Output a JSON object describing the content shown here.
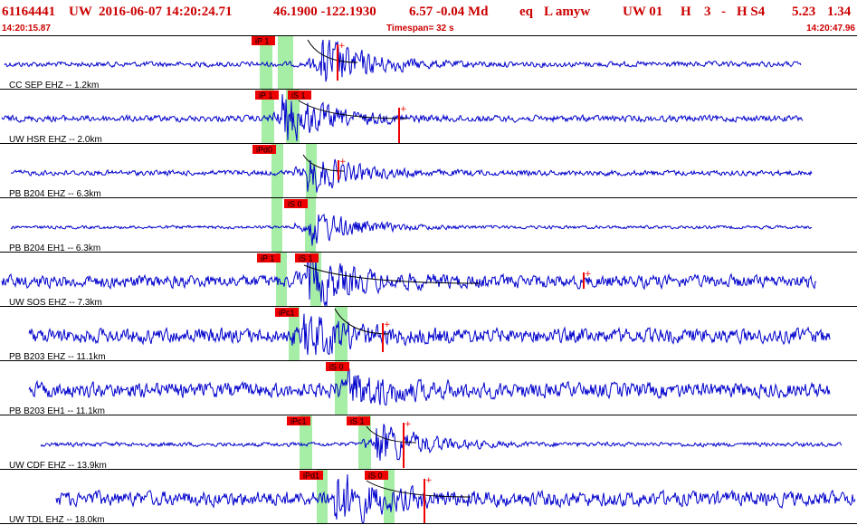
{
  "header": {
    "event_id": "61164441",
    "network": "UW",
    "origin": "2016-06-07 14:20:24.71",
    "lat_lon": "46.1900 -122.1930",
    "depth_mag": "6.57 -0.04 Md",
    "type": "eq",
    "flags": "L amyw",
    "solution": "UW 01",
    "quality": "H",
    "count": "3",
    "dash": "-",
    "hs": "H S4",
    "extra1": "5.23",
    "extra2": "1.34"
  },
  "timebar": {
    "start": "14:20:15.87",
    "span": "Timespan=  32 s",
    "end": "14:20:47.96"
  },
  "colors": {
    "trace": "#0000cc",
    "pick": "#ee0000",
    "window": "#a6eda6",
    "divider": "#000000",
    "label": "#000000"
  },
  "panels": [
    {
      "label": "CC SEP EHZ -- 1.2km",
      "picks": [
        {
          "text": "iP 1"
        }
      ]
    },
    {
      "label": "UW HSR EHZ -- 2.0km",
      "picks": [
        {
          "text": "iP 1"
        },
        {
          "text": "iS 1"
        }
      ]
    },
    {
      "label": "PB B204 EHZ -- 6.3km",
      "picks": [
        {
          "text": "iPd0"
        }
      ]
    },
    {
      "label": "PB B204 EH1 -- 6.3km",
      "picks": [
        {
          "text": "iS 0"
        }
      ]
    },
    {
      "label": "UW SOS EHZ -- 7.3km",
      "picks": [
        {
          "text": "iP 1"
        },
        {
          "text": "iS 1"
        }
      ]
    },
    {
      "label": "PB B203 EHZ -- 11.1km",
      "picks": [
        {
          "text": "iPc1"
        }
      ]
    },
    {
      "label": "PB B203 EH1 -- 11.1km",
      "picks": [
        {
          "text": "iS 0"
        }
      ]
    },
    {
      "label": "UW CDF EHZ -- 13.9km",
      "picks": [
        {
          "text": "iPc1"
        },
        {
          "text": "iS 1"
        }
      ]
    },
    {
      "label": "UW TDL EHZ -- 18.0km",
      "picks": [
        {
          "text": "iPd1"
        },
        {
          "text": "iS 0"
        }
      ]
    }
  ]
}
